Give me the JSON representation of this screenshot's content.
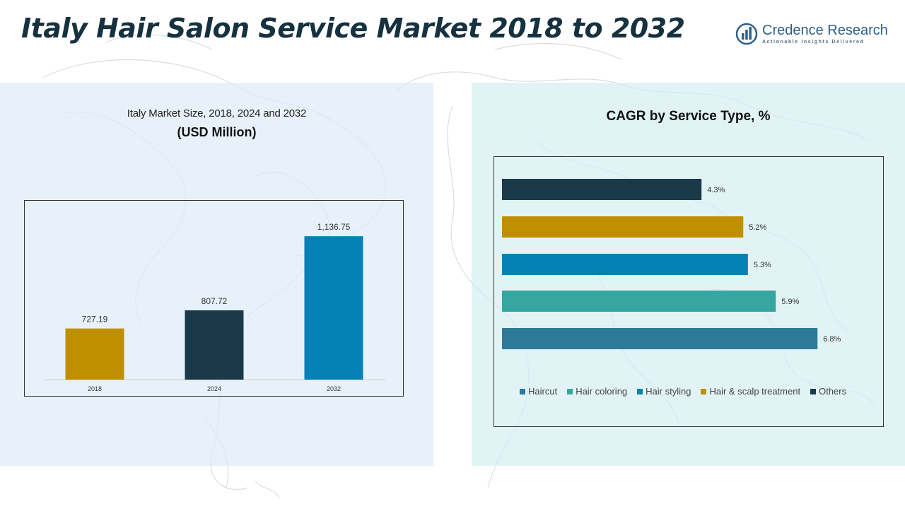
{
  "header": {
    "title": "Italy Hair Salon Service Market 2018 to 2032",
    "title_color": "#16313f"
  },
  "logo": {
    "name": "Credence Research",
    "tagline": "Actionable Insights Delivered",
    "icon": "bar-chart-circle-logo",
    "color": "#2c5f8a"
  },
  "left_chart": {
    "subtitle": "Italy Market Size, 2018, 2024 and 2032",
    "unit_label": "(USD Million)"
  },
  "right_chart": {
    "subtitle": "CAGR by Service Type, %"
  },
  "chart_data": [
    {
      "type": "bar",
      "title": "Italy Market Size, 2018, 2024 and 2032",
      "ylabel": "(USD Million)",
      "categories": [
        "2018",
        "2024",
        "2032"
      ],
      "values": [
        727.19,
        807.72,
        1136.75
      ],
      "value_labels": [
        "727.19",
        "807.72",
        "1,136.75"
      ],
      "colors": [
        "#bf8f00",
        "#1a3a4a",
        "#0681b5"
      ],
      "ylim": [
        500,
        1200
      ],
      "grid": false
    },
    {
      "type": "bar",
      "orientation": "horizontal",
      "title": "CAGR by Service Type, %",
      "categories": [
        "Others",
        "Hair & scalp treatment",
        "Hair styling",
        "Hair coloring",
        "Haircut"
      ],
      "values": [
        4.3,
        5.2,
        5.3,
        5.9,
        6.8
      ],
      "value_labels": [
        "4.3%",
        "5.2%",
        "5.3%",
        "5.9%",
        "6.8%"
      ],
      "colors": [
        "#1a3a4a",
        "#bf8f00",
        "#0681b5",
        "#36a6a0",
        "#2e7898"
      ],
      "xlim": [
        0,
        8
      ],
      "grid": false,
      "legend": {
        "position": "bottom",
        "items": [
          {
            "label": "Haircut",
            "color": "#2e7898"
          },
          {
            "label": "Hair coloring",
            "color": "#36a6a0"
          },
          {
            "label": "Hair styling",
            "color": "#0681b5"
          },
          {
            "label": "Hair & scalp treatment",
            "color": "#bf8f00"
          },
          {
            "label": "Others",
            "color": "#1a3a4a"
          }
        ]
      }
    }
  ]
}
